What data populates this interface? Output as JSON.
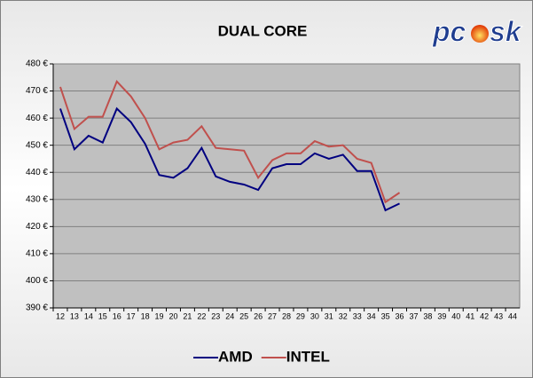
{
  "chart_data": {
    "type": "line",
    "title": "DUAL CORE",
    "logo": {
      "left": "pc",
      "right": "sk"
    },
    "categories": [
      "12",
      "13",
      "14",
      "15",
      "16",
      "17",
      "18",
      "19",
      "20",
      "21",
      "22",
      "23",
      "24",
      "25",
      "26",
      "27",
      "28",
      "29",
      "30",
      "31",
      "32",
      "33",
      "34",
      "35",
      "36",
      "37",
      "38",
      "39",
      "40",
      "41",
      "42",
      "43",
      "44"
    ],
    "series": [
      {
        "name": "AMD",
        "color": "#000080",
        "values": [
          463.5,
          448.5,
          453.5,
          451,
          463.5,
          458.5,
          450.5,
          439,
          438,
          441.5,
          449,
          438.5,
          436.5,
          435.5,
          433.5,
          441.5,
          443,
          443,
          447,
          445,
          446.5,
          440.5,
          440.5,
          426,
          428.5,
          null,
          null,
          null,
          null,
          null,
          null,
          null,
          null
        ]
      },
      {
        "name": "INTEL",
        "color": "#c0504d",
        "values": [
          471.5,
          456,
          460.5,
          460.5,
          473.5,
          468,
          460,
          448.5,
          451,
          452,
          457,
          449,
          448.5,
          448,
          438,
          444.5,
          447,
          447,
          451.5,
          449.5,
          450,
          445,
          443.5,
          429,
          432.5,
          null,
          null,
          null,
          null,
          null,
          null,
          null,
          null
        ]
      }
    ],
    "ylim": [
      390,
      480
    ],
    "yticks": [
      {
        "value": 390,
        "label": "390 €"
      },
      {
        "value": 400,
        "label": "400 €"
      },
      {
        "value": 410,
        "label": "410 €"
      },
      {
        "value": 420,
        "label": "420 €"
      },
      {
        "value": 430,
        "label": "430 €"
      },
      {
        "value": 440,
        "label": "440 €"
      },
      {
        "value": 450,
        "label": "450 €"
      },
      {
        "value": 460,
        "label": "460 €"
      },
      {
        "value": 470,
        "label": "470 €"
      },
      {
        "value": 480,
        "label": "480 €"
      }
    ],
    "grid": true,
    "legend": "bottom"
  }
}
